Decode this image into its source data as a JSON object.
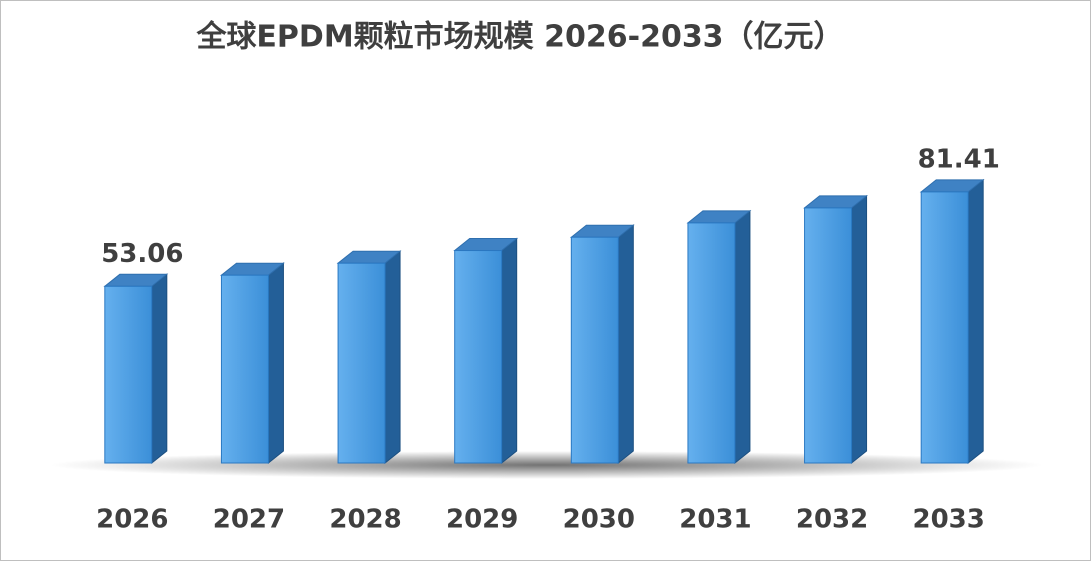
{
  "chart_data": {
    "type": "bar3d",
    "title": "全球EPDM颗粒市场规模 2026-2033（亿元）",
    "categories": [
      "2026",
      "2027",
      "2028",
      "2029",
      "2030",
      "2031",
      "2032",
      "2033"
    ],
    "values": [
      53.06,
      56.4,
      60.0,
      63.8,
      67.8,
      72.1,
      76.6,
      81.41
    ],
    "value_labels": [
      "53.06",
      null,
      null,
      null,
      null,
      null,
      null,
      "81.41"
    ],
    "color": "#4a9be0",
    "ylim": [
      0,
      100
    ]
  }
}
